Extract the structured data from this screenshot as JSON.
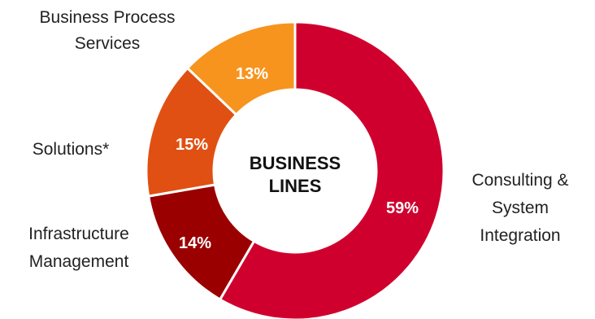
{
  "chart_data": {
    "type": "pie",
    "style": "donut",
    "center_label": [
      "BUSINESS",
      "LINES"
    ],
    "slices": [
      {
        "label": [
          "Consulting &",
          "System",
          "Integration"
        ],
        "value": 59,
        "display": "59%",
        "color": "#d0002e"
      },
      {
        "label": [
          "Infrastructure",
          "Management"
        ],
        "value": 14,
        "display": "14%",
        "color": "#9a0000"
      },
      {
        "label": [
          "Solutions*"
        ],
        "value": 15,
        "display": "15%",
        "color": "#e05012"
      },
      {
        "label": [
          "Business Process",
          "Services"
        ],
        "value": 13,
        "display": "13%",
        "color": "#f7941d"
      }
    ]
  }
}
